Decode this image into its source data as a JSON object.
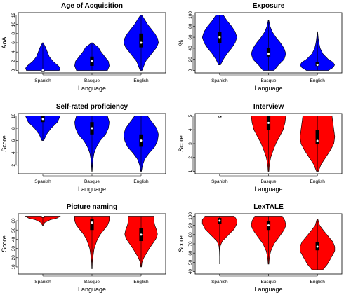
{
  "figure": {
    "panels": [
      {
        "id": "age-of-acquisition",
        "title": "Age of Acquisition",
        "ylabel": "AoA",
        "xlabel": "Language",
        "color": "#0000ff"
      },
      {
        "id": "exposure",
        "title": "Exposure",
        "ylabel": "%",
        "xlabel": "Language",
        "color": "#0000ff"
      },
      {
        "id": "self-rated-proficiency",
        "title": "Self-rated proficiency",
        "ylabel": "Score",
        "xlabel": "Language",
        "color": "#0000ff"
      },
      {
        "id": "interview",
        "title": "Interview",
        "ylabel": "Score",
        "xlabel": "Language",
        "color": "#ff0000"
      },
      {
        "id": "picture-naming",
        "title": "Picture naming",
        "ylabel": "Score",
        "xlabel": "Language",
        "color": "#ff0000"
      },
      {
        "id": "lextale",
        "title": "LexTALE",
        "ylabel": "Score",
        "xlabel": "Language",
        "color": "#ff0000"
      }
    ]
  },
  "chart_data": [
    {
      "type": "violin",
      "title": "Age of Acquisition",
      "xlabel": "Language",
      "ylabel": "AoA",
      "categories": [
        "Spanish",
        "Basque",
        "English"
      ],
      "ylim": [
        0,
        12
      ],
      "yticks": [
        0,
        2,
        4,
        6,
        8,
        10,
        12
      ],
      "color": "#0000ff",
      "groups": [
        {
          "name": "Spanish",
          "min": 0,
          "max": 6,
          "q1": 0,
          "median": 0,
          "q3": 0,
          "density": [
            [
              0,
              0.9
            ],
            [
              0.5,
              0.95
            ],
            [
              1,
              0.85
            ],
            [
              2,
              0.55
            ],
            [
              3,
              0.35
            ],
            [
              4,
              0.25
            ],
            [
              5,
              0.15
            ],
            [
              6,
              0.02
            ]
          ]
        },
        {
          "name": "Basque",
          "min": 0,
          "max": 6,
          "q1": 1,
          "median": 2,
          "q3": 3,
          "density": [
            [
              0,
              0.85
            ],
            [
              1,
              0.95
            ],
            [
              2,
              0.9
            ],
            [
              3,
              0.7
            ],
            [
              4,
              0.5
            ],
            [
              5,
              0.35
            ],
            [
              6,
              0.02
            ]
          ]
        },
        {
          "name": "English",
          "min": 0,
          "max": 12,
          "q1": 5,
          "median": 6,
          "q3": 8,
          "density": [
            [
              0,
              0.05
            ],
            [
              2,
              0.25
            ],
            [
              3,
              0.45
            ],
            [
              4,
              0.65
            ],
            [
              5,
              0.85
            ],
            [
              6,
              0.95
            ],
            [
              7,
              0.9
            ],
            [
              8,
              0.75
            ],
            [
              9,
              0.55
            ],
            [
              10,
              0.35
            ],
            [
              11,
              0.2
            ],
            [
              12,
              0.03
            ]
          ]
        }
      ]
    },
    {
      "type": "violin",
      "title": "Exposure",
      "xlabel": "Language",
      "ylabel": "%",
      "categories": [
        "Spanish",
        "Basque",
        "English"
      ],
      "ylim": [
        0,
        100
      ],
      "yticks": [
        0,
        20,
        40,
        60,
        80,
        100
      ],
      "color": "#0000ff",
      "groups": [
        {
          "name": "Spanish",
          "min": 10,
          "max": 100,
          "q1": 50,
          "median": 60,
          "q3": 70,
          "density": [
            [
              10,
              0.05
            ],
            [
              20,
              0.2
            ],
            [
              30,
              0.4
            ],
            [
              40,
              0.65
            ],
            [
              50,
              0.85
            ],
            [
              60,
              0.95
            ],
            [
              70,
              0.85
            ],
            [
              80,
              0.65
            ],
            [
              90,
              0.4
            ],
            [
              100,
              0.2
            ]
          ]
        },
        {
          "name": "Basque",
          "min": 0,
          "max": 90,
          "q1": 25,
          "median": 30,
          "q3": 40,
          "density": [
            [
              0,
              0.3
            ],
            [
              10,
              0.55
            ],
            [
              20,
              0.85
            ],
            [
              30,
              0.95
            ],
            [
              40,
              0.85
            ],
            [
              50,
              0.65
            ],
            [
              60,
              0.4
            ],
            [
              70,
              0.2
            ],
            [
              80,
              0.08
            ],
            [
              90,
              0.02
            ]
          ]
        },
        {
          "name": "English",
          "min": 0,
          "max": 70,
          "q1": 8,
          "median": 10,
          "q3": 15,
          "density": [
            [
              0,
              0.6
            ],
            [
              5,
              0.85
            ],
            [
              10,
              0.95
            ],
            [
              15,
              0.85
            ],
            [
              20,
              0.6
            ],
            [
              30,
              0.3
            ],
            [
              40,
              0.15
            ],
            [
              50,
              0.08
            ],
            [
              60,
              0.04
            ],
            [
              70,
              0.01
            ]
          ]
        }
      ]
    },
    {
      "type": "violin",
      "title": "Self-rated proficiency",
      "xlabel": "Language",
      "ylabel": "Score",
      "categories": [
        "Spanish",
        "Basque",
        "English"
      ],
      "ylim": [
        1,
        10
      ],
      "yticks": [
        2,
        4,
        6,
        8,
        10
      ],
      "color": "#0000ff",
      "groups": [
        {
          "name": "Spanish",
          "min": 6,
          "max": 10,
          "q1": 9,
          "median": 9.5,
          "q3": 10,
          "density": [
            [
              6,
              0.05
            ],
            [
              7,
              0.2
            ],
            [
              8,
              0.45
            ],
            [
              9,
              0.8
            ],
            [
              10,
              0.95
            ]
          ]
        },
        {
          "name": "Basque",
          "min": 1,
          "max": 10,
          "q1": 7,
          "median": 8,
          "q3": 9,
          "density": [
            [
              1,
              0.01
            ],
            [
              2,
              0.03
            ],
            [
              3,
              0.06
            ],
            [
              4,
              0.12
            ],
            [
              5,
              0.25
            ],
            [
              6,
              0.45
            ],
            [
              7,
              0.75
            ],
            [
              8,
              0.9
            ],
            [
              9,
              0.95
            ],
            [
              10,
              0.85
            ]
          ]
        },
        {
          "name": "English",
          "min": 1,
          "max": 10,
          "q1": 5,
          "median": 6,
          "q3": 7,
          "density": [
            [
              1,
              0.02
            ],
            [
              2,
              0.08
            ],
            [
              3,
              0.2
            ],
            [
              4,
              0.45
            ],
            [
              5,
              0.75
            ],
            [
              6,
              0.9
            ],
            [
              7,
              0.95
            ],
            [
              8,
              0.85
            ],
            [
              9,
              0.6
            ],
            [
              10,
              0.35
            ]
          ]
        }
      ]
    },
    {
      "type": "violin",
      "title": "Interview",
      "xlabel": "Language",
      "ylabel": "Score",
      "categories": [
        "Spanish",
        "Basque",
        "English"
      ],
      "ylim": [
        1,
        5
      ],
      "yticks": [
        1,
        2,
        3,
        4,
        5
      ],
      "color": "#ff0000",
      "groups": [
        {
          "name": "Spanish",
          "min": 5,
          "max": 5,
          "q1": 5,
          "median": 5,
          "q3": 5,
          "density": [
            [
              4.99,
              0.0
            ],
            [
              5,
              0.005
            ]
          ]
        },
        {
          "name": "Basque",
          "min": 1,
          "max": 5,
          "q1": 4,
          "median": 4.5,
          "q3": 5,
          "density": [
            [
              1,
              0.02
            ],
            [
              1.5,
              0.05
            ],
            [
              2,
              0.12
            ],
            [
              2.5,
              0.25
            ],
            [
              3,
              0.4
            ],
            [
              3.5,
              0.6
            ],
            [
              4,
              0.8
            ],
            [
              4.5,
              0.9
            ],
            [
              5,
              0.95
            ]
          ]
        },
        {
          "name": "English",
          "min": 1,
          "max": 5,
          "q1": 3,
          "median": 3.2,
          "q3": 4,
          "density": [
            [
              1,
              0.05
            ],
            [
              1.5,
              0.2
            ],
            [
              2,
              0.45
            ],
            [
              2.5,
              0.7
            ],
            [
              3,
              0.9
            ],
            [
              3.5,
              0.95
            ],
            [
              4,
              0.9
            ],
            [
              4.5,
              0.85
            ],
            [
              5,
              0.8
            ]
          ]
        }
      ]
    },
    {
      "type": "violin",
      "title": "Picture naming",
      "xlabel": "Language",
      "ylabel": "Score",
      "categories": [
        "Spanish",
        "Basque",
        "English"
      ],
      "ylim": [
        5,
        65
      ],
      "yticks": [
        10,
        20,
        30,
        40,
        50,
        60
      ],
      "color": "#ff0000",
      "groups": [
        {
          "name": "Spanish",
          "min": 55,
          "max": 65,
          "q1": 64,
          "median": 65,
          "q3": 65,
          "density": [
            [
              55,
              0.02
            ],
            [
              58,
              0.1
            ],
            [
              61,
              0.4
            ],
            [
              63,
              0.8
            ],
            [
              65,
              0.95
            ]
          ]
        },
        {
          "name": "Basque",
          "min": 8,
          "max": 65,
          "q1": 50,
          "median": 58,
          "q3": 62,
          "density": [
            [
              8,
              0.01
            ],
            [
              15,
              0.02
            ],
            [
              20,
              0.05
            ],
            [
              30,
              0.12
            ],
            [
              40,
              0.3
            ],
            [
              45,
              0.45
            ],
            [
              50,
              0.65
            ],
            [
              55,
              0.85
            ],
            [
              60,
              0.95
            ],
            [
              65,
              0.95
            ]
          ]
        },
        {
          "name": "English",
          "min": 10,
          "max": 65,
          "q1": 38,
          "median": 45,
          "q3": 52,
          "density": [
            [
              10,
              0.02
            ],
            [
              15,
              0.05
            ],
            [
              20,
              0.15
            ],
            [
              30,
              0.45
            ],
            [
              40,
              0.8
            ],
            [
              45,
              0.9
            ],
            [
              50,
              0.85
            ],
            [
              55,
              0.75
            ],
            [
              60,
              0.7
            ],
            [
              65,
              0.7
            ]
          ]
        }
      ]
    },
    {
      "type": "violin",
      "title": "LexTALE",
      "xlabel": "Language",
      "ylabel": "Score",
      "categories": [
        "Spanish",
        "Basque",
        "English"
      ],
      "ylim": [
        40,
        100
      ],
      "yticks": [
        40,
        50,
        60,
        70,
        80,
        90,
        100
      ],
      "color": "#ff0000",
      "groups": [
        {
          "name": "Spanish",
          "min": 48,
          "max": 100,
          "q1": 92,
          "median": 95,
          "q3": 98,
          "density": [
            [
              48,
              0.0
            ],
            [
              55,
              0.0
            ],
            [
              62,
              0.01
            ],
            [
              68,
              0.04
            ],
            [
              73,
              0.15
            ],
            [
              80,
              0.5
            ],
            [
              86,
              0.8
            ],
            [
              92,
              0.95
            ],
            [
              96,
              0.95
            ],
            [
              100,
              0.8
            ]
          ]
        },
        {
          "name": "Basque",
          "min": 48,
          "max": 100,
          "q1": 85,
          "median": 90,
          "q3": 95,
          "density": [
            [
              48,
              0.02
            ],
            [
              55,
              0.05
            ],
            [
              62,
              0.12
            ],
            [
              70,
              0.3
            ],
            [
              78,
              0.6
            ],
            [
              85,
              0.85
            ],
            [
              90,
              0.95
            ],
            [
              95,
              0.9
            ],
            [
              100,
              0.75
            ]
          ]
        },
        {
          "name": "English",
          "min": 42,
          "max": 97,
          "q1": 63,
          "median": 67,
          "q3": 72,
          "density": [
            [
              42,
              0.3
            ],
            [
              48,
              0.55
            ],
            [
              55,
              0.75
            ],
            [
              62,
              0.95
            ],
            [
              67,
              0.95
            ],
            [
              72,
              0.85
            ],
            [
              78,
              0.6
            ],
            [
              84,
              0.35
            ],
            [
              90,
              0.12
            ],
            [
              97,
              0.02
            ]
          ]
        }
      ]
    }
  ]
}
